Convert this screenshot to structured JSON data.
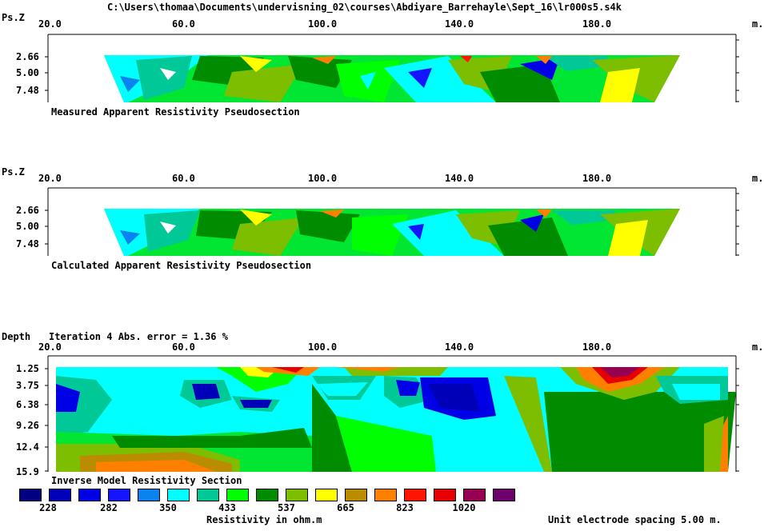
{
  "window_title": "C:\\Users\\thomaa\\Documents\\undervisning_02\\courses\\Abdiyare_Barrehayle\\Sept_16\\lr000s5.s4k",
  "x_axis": {
    "ticks": [
      "20.0",
      "60.0",
      "100.0",
      "140.0",
      "180.0"
    ],
    "unit": "m."
  },
  "panels": {
    "measured": {
      "axis_label": "Ps.Z",
      "depth_ticks": [
        "2.66",
        "5.00",
        "7.48"
      ],
      "title": "Measured Apparent Resistivity Pseudosection"
    },
    "calculated": {
      "axis_label": "Ps.Z",
      "depth_ticks": [
        "2.66",
        "5.00",
        "7.48"
      ],
      "title": "Calculated Apparent Resistivity Pseudosection"
    },
    "inverse": {
      "axis_label": "Depth",
      "iteration_text": "Iteration 4 Abs. error = 1.36 %",
      "depth_ticks": [
        "1.25",
        "3.75",
        "6.38",
        "9.26",
        "12.4",
        "15.9"
      ],
      "title": "Inverse Model Resistivity Section"
    }
  },
  "legend": {
    "colors": [
      "#000080",
      "#0000b8",
      "#0000e6",
      "#1414ff",
      "#0a82f0",
      "#00ffff",
      "#00c896",
      "#00e632",
      "#00ff00",
      "#008c00",
      "#7dbe00",
      "#ffff00",
      "#bc8c00",
      "#ff8000",
      "#ff1400",
      "#e60000",
      "#960050",
      "#6e006e"
    ],
    "value_labels": [
      "228",
      "282",
      "350",
      "433",
      "537",
      "665",
      "823",
      "1020"
    ],
    "units_label": "Resistivity in ohm.m"
  },
  "footer": {
    "electrode_spacing": "Unit electrode spacing 5.00 m."
  }
}
